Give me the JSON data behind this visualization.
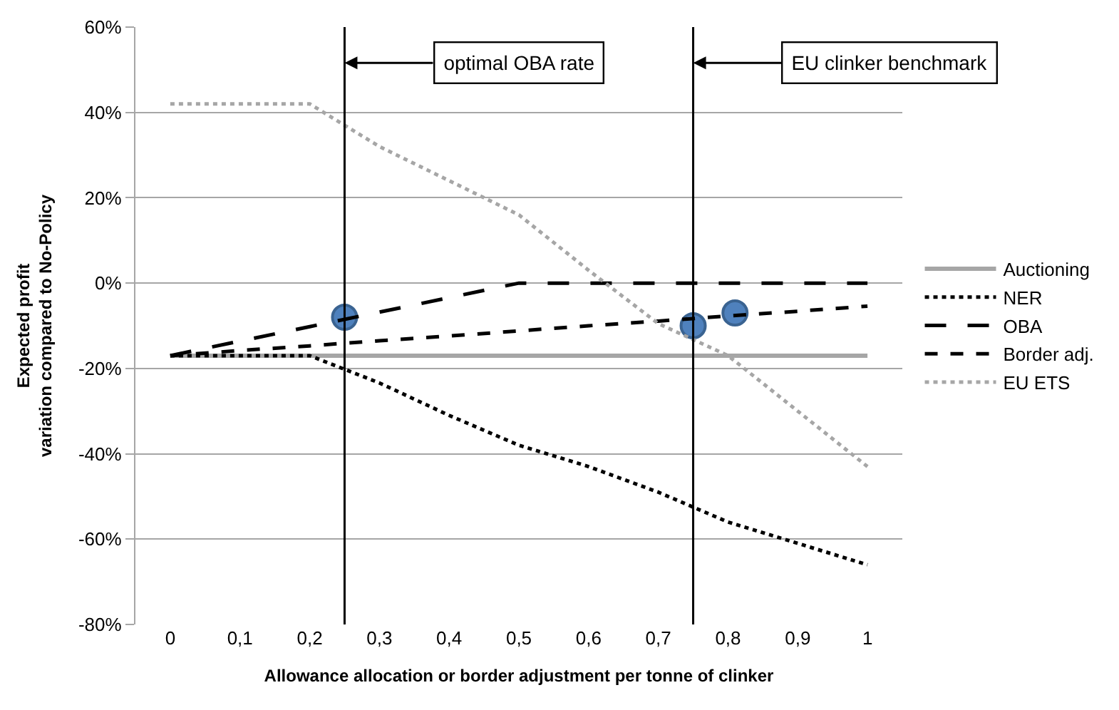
{
  "chart_data": {
    "type": "line",
    "xlabel": "Allowance allocation or border adjustment per tonne of clinker",
    "ylabel": "Expected profit\nvariation compared to No-Policy",
    "x": [
      0,
      0.1,
      0.2,
      0.3,
      0.4,
      0.5,
      0.6,
      0.7,
      0.8,
      0.9,
      1
    ],
    "xlim": [
      -0.05,
      1.05
    ],
    "xticks": [
      0,
      {
        "value": 0.1,
        "label": "0,1"
      },
      {
        "value": 0.2,
        "label": "0,2"
      },
      {
        "value": 0.3,
        "label": "0,3"
      },
      {
        "value": 0.4,
        "label": "0,4"
      },
      {
        "value": 0.5,
        "label": "0,5"
      },
      {
        "value": 0.6,
        "label": "0,6"
      },
      {
        "value": 0.7,
        "label": "0,7"
      },
      {
        "value": 0.8,
        "label": "0,8"
      },
      {
        "value": 0.9,
        "label": "0,9"
      },
      1
    ],
    "ylim": [
      -80,
      60
    ],
    "yticks": [
      {
        "value": -80,
        "label": "-80%"
      },
      {
        "value": -60,
        "label": "-60%"
      },
      {
        "value": -40,
        "label": "-40%"
      },
      {
        "value": -20,
        "label": "-20%"
      },
      {
        "value": 0,
        "label": "0%"
      },
      {
        "value": 20,
        "label": "20%"
      },
      {
        "value": 40,
        "label": "40%"
      },
      {
        "value": 60,
        "label": "60%"
      }
    ],
    "grid": "y",
    "legend": "right",
    "series": [
      {
        "type": "scatter",
        "color": "#4f81bd",
        "marker": "circle",
        "x": [
          0.25,
          0.75,
          0.81
        ],
        "values": [
          -8,
          -10,
          -7
        ]
      },
      {
        "name": "Auctioning",
        "color": "#a6a6a6",
        "line_style": "solid",
        "values": [
          -17,
          -17,
          -17,
          -17,
          -17,
          -17,
          -17,
          -17,
          -17,
          -17,
          -17
        ]
      },
      {
        "name": "NER",
        "color": "#000000",
        "line_style": "dotted",
        "values": [
          -17,
          -17,
          -17,
          -23.4,
          -31,
          -38,
          -43,
          -49,
          -56,
          -61,
          -66
        ]
      },
      {
        "name": "OBA",
        "color": "#000000",
        "line_style": "longdash",
        "values": [
          -17,
          -13.6,
          -10.2,
          -6.8,
          -3.4,
          0,
          0,
          0,
          0,
          0,
          0
        ]
      },
      {
        "name": "Border adj.",
        "color": "#000000",
        "line_style": "dashed",
        "values": [
          -17,
          -15.8,
          -14.7,
          -13.5,
          -12.4,
          -11.2,
          -10,
          -8.9,
          -7.7,
          -6.6,
          -5.4
        ]
      },
      {
        "name": "EU ETS",
        "color": "#a6a6a6",
        "line_style": "dotted",
        "values": [
          42,
          42,
          42,
          32,
          24,
          16,
          3,
          -9.5,
          -17,
          -30,
          -43
        ]
      }
    ],
    "ref_lines": [
      {
        "axis": "x",
        "value": 0.25,
        "label": "optimal OBA rate",
        "color": "#000000"
      },
      {
        "axis": "x",
        "value": 0.75,
        "label": "EU clinker benchmark",
        "color": "#000000"
      }
    ]
  }
}
